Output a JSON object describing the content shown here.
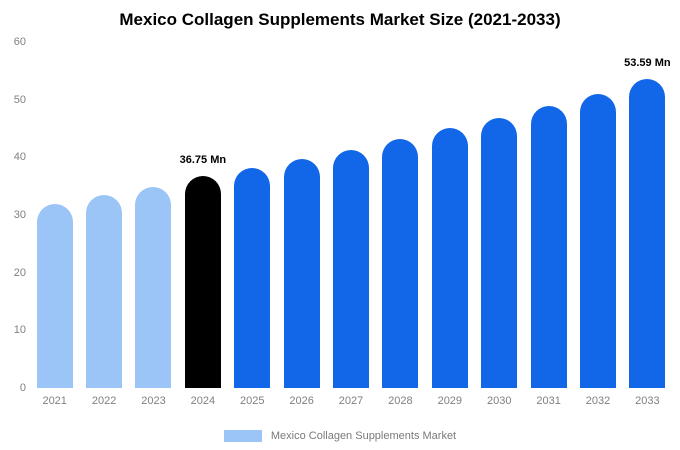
{
  "legend": {
    "label": "Mexico Collagen Supplements Market",
    "swatch_color": "#9cc5f7"
  },
  "colors": {
    "historical": "#9cc5f7",
    "highlight": "#000000",
    "forecast": "#1167e8"
  },
  "chart_data": {
    "type": "bar",
    "title": "Mexico Collagen Supplements Market Size (2021-2033)",
    "unit": "Mn",
    "categories": [
      "2021",
      "2022",
      "2023",
      "2024",
      "2025",
      "2026",
      "2027",
      "2028",
      "2029",
      "2030",
      "2031",
      "2032",
      "2033"
    ],
    "values": [
      31.9,
      33.4,
      34.8,
      36.75,
      38.1,
      39.7,
      41.3,
      43.1,
      45.0,
      46.9,
      48.9,
      51.0,
      53.59
    ],
    "bar_colors": [
      "#9cc5f7",
      "#9cc5f7",
      "#9cc5f7",
      "#000000",
      "#1167e8",
      "#1167e8",
      "#1167e8",
      "#1167e8",
      "#1167e8",
      "#1167e8",
      "#1167e8",
      "#1167e8",
      "#1167e8"
    ],
    "data_labels": [
      {
        "index": 3,
        "text": "36.75 Mn"
      },
      {
        "index": 12,
        "text": "53.59 Mn"
      }
    ],
    "xlabel": "",
    "ylabel": "",
    "ylim": [
      0,
      60
    ],
    "y_ticks": [
      0,
      10,
      20,
      30,
      40,
      50,
      60
    ],
    "grid": false,
    "legend_position": "bottom"
  }
}
